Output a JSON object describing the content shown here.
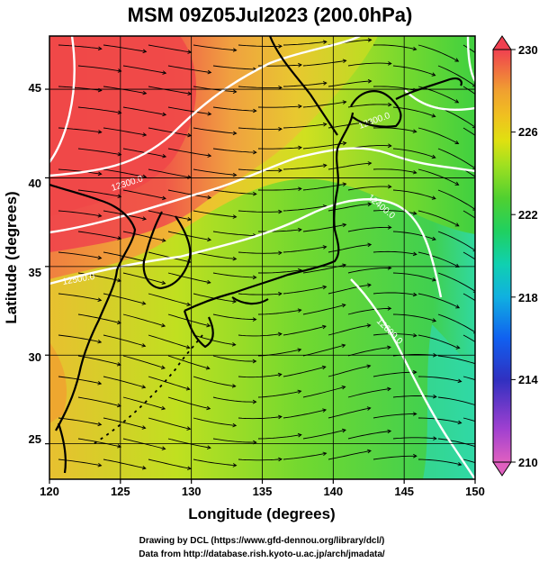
{
  "title": "MSM 09Z05Jul2023 (200.0hPa)",
  "x_axis": {
    "label": "Longitude (degrees)",
    "range": [
      120,
      150
    ],
    "ticks": [
      "120",
      "125",
      "130",
      "135",
      "140",
      "145",
      "150"
    ]
  },
  "y_axis": {
    "label": "Latitude  (degrees)",
    "range": [
      23,
      48
    ],
    "ticks": [
      "25",
      "30",
      "35",
      "40",
      "45"
    ]
  },
  "colorbar": {
    "range": [
      210,
      230
    ],
    "ticks": [
      "210",
      "214",
      "218",
      "222",
      "226",
      "230"
    ],
    "colors": [
      "#e060c0",
      "#a040d0",
      "#3030c0",
      "#1060f0",
      "#10b0e0",
      "#10d0b0",
      "#20d060",
      "#40d030",
      "#80e020",
      "#d8e010",
      "#f0c020",
      "#f0a030",
      "#f07040",
      "#f04050"
    ]
  },
  "contours": [
    {
      "label": "12300.0"
    },
    {
      "label": "12400.0"
    },
    {
      "label": "12500.0"
    },
    {
      "label": "12600.0"
    },
    {
      "label": "12300.0"
    }
  ],
  "credits": {
    "line1": "Drawing by DCL (https://www.gfd-dennou.org/library/dcl/)",
    "line2": "Data from http://database.rish.kyoto-u.ac.jp/arch/jmadata/"
  }
}
